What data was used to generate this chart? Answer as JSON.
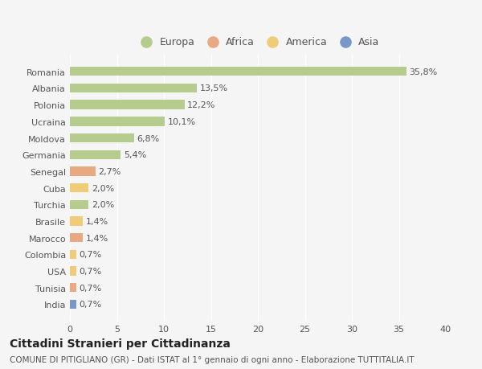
{
  "countries": [
    "Romania",
    "Albania",
    "Polonia",
    "Ucraina",
    "Moldova",
    "Germania",
    "Senegal",
    "Cuba",
    "Turchia",
    "Brasile",
    "Marocco",
    "Colombia",
    "USA",
    "Tunisia",
    "India"
  ],
  "values": [
    35.8,
    13.5,
    12.2,
    10.1,
    6.8,
    5.4,
    2.7,
    2.0,
    2.0,
    1.4,
    1.4,
    0.7,
    0.7,
    0.7,
    0.7
  ],
  "labels": [
    "35,8%",
    "13,5%",
    "12,2%",
    "10,1%",
    "6,8%",
    "5,4%",
    "2,7%",
    "2,0%",
    "2,0%",
    "1,4%",
    "1,4%",
    "0,7%",
    "0,7%",
    "0,7%",
    "0,7%"
  ],
  "bar_colors": [
    "#b5cc8e",
    "#b5cc8e",
    "#b5cc8e",
    "#b5cc8e",
    "#b5cc8e",
    "#b5cc8e",
    "#e8a882",
    "#f0cc78",
    "#b5cc8e",
    "#f0cc78",
    "#e8a882",
    "#f0cc78",
    "#f0cc78",
    "#e8a882",
    "#7899c8"
  ],
  "legend_labels": [
    "Europa",
    "Africa",
    "America",
    "Asia"
  ],
  "legend_colors": [
    "#b5cc8e",
    "#e8a882",
    "#f0cc78",
    "#7899c8"
  ],
  "title": "Cittadini Stranieri per Cittadinanza",
  "subtitle": "COMUNE DI PITIGLIANO (GR) - Dati ISTAT al 1° gennaio di ogni anno - Elaborazione TUTTITALIA.IT",
  "xlim": [
    0,
    40
  ],
  "xticks": [
    0,
    5,
    10,
    15,
    20,
    25,
    30,
    35,
    40
  ],
  "background_color": "#f5f5f5",
  "grid_color": "#ffffff",
  "bar_height": 0.55,
  "title_fontsize": 10,
  "subtitle_fontsize": 7.5,
  "tick_fontsize": 8,
  "label_fontsize": 8,
  "legend_fontsize": 9
}
